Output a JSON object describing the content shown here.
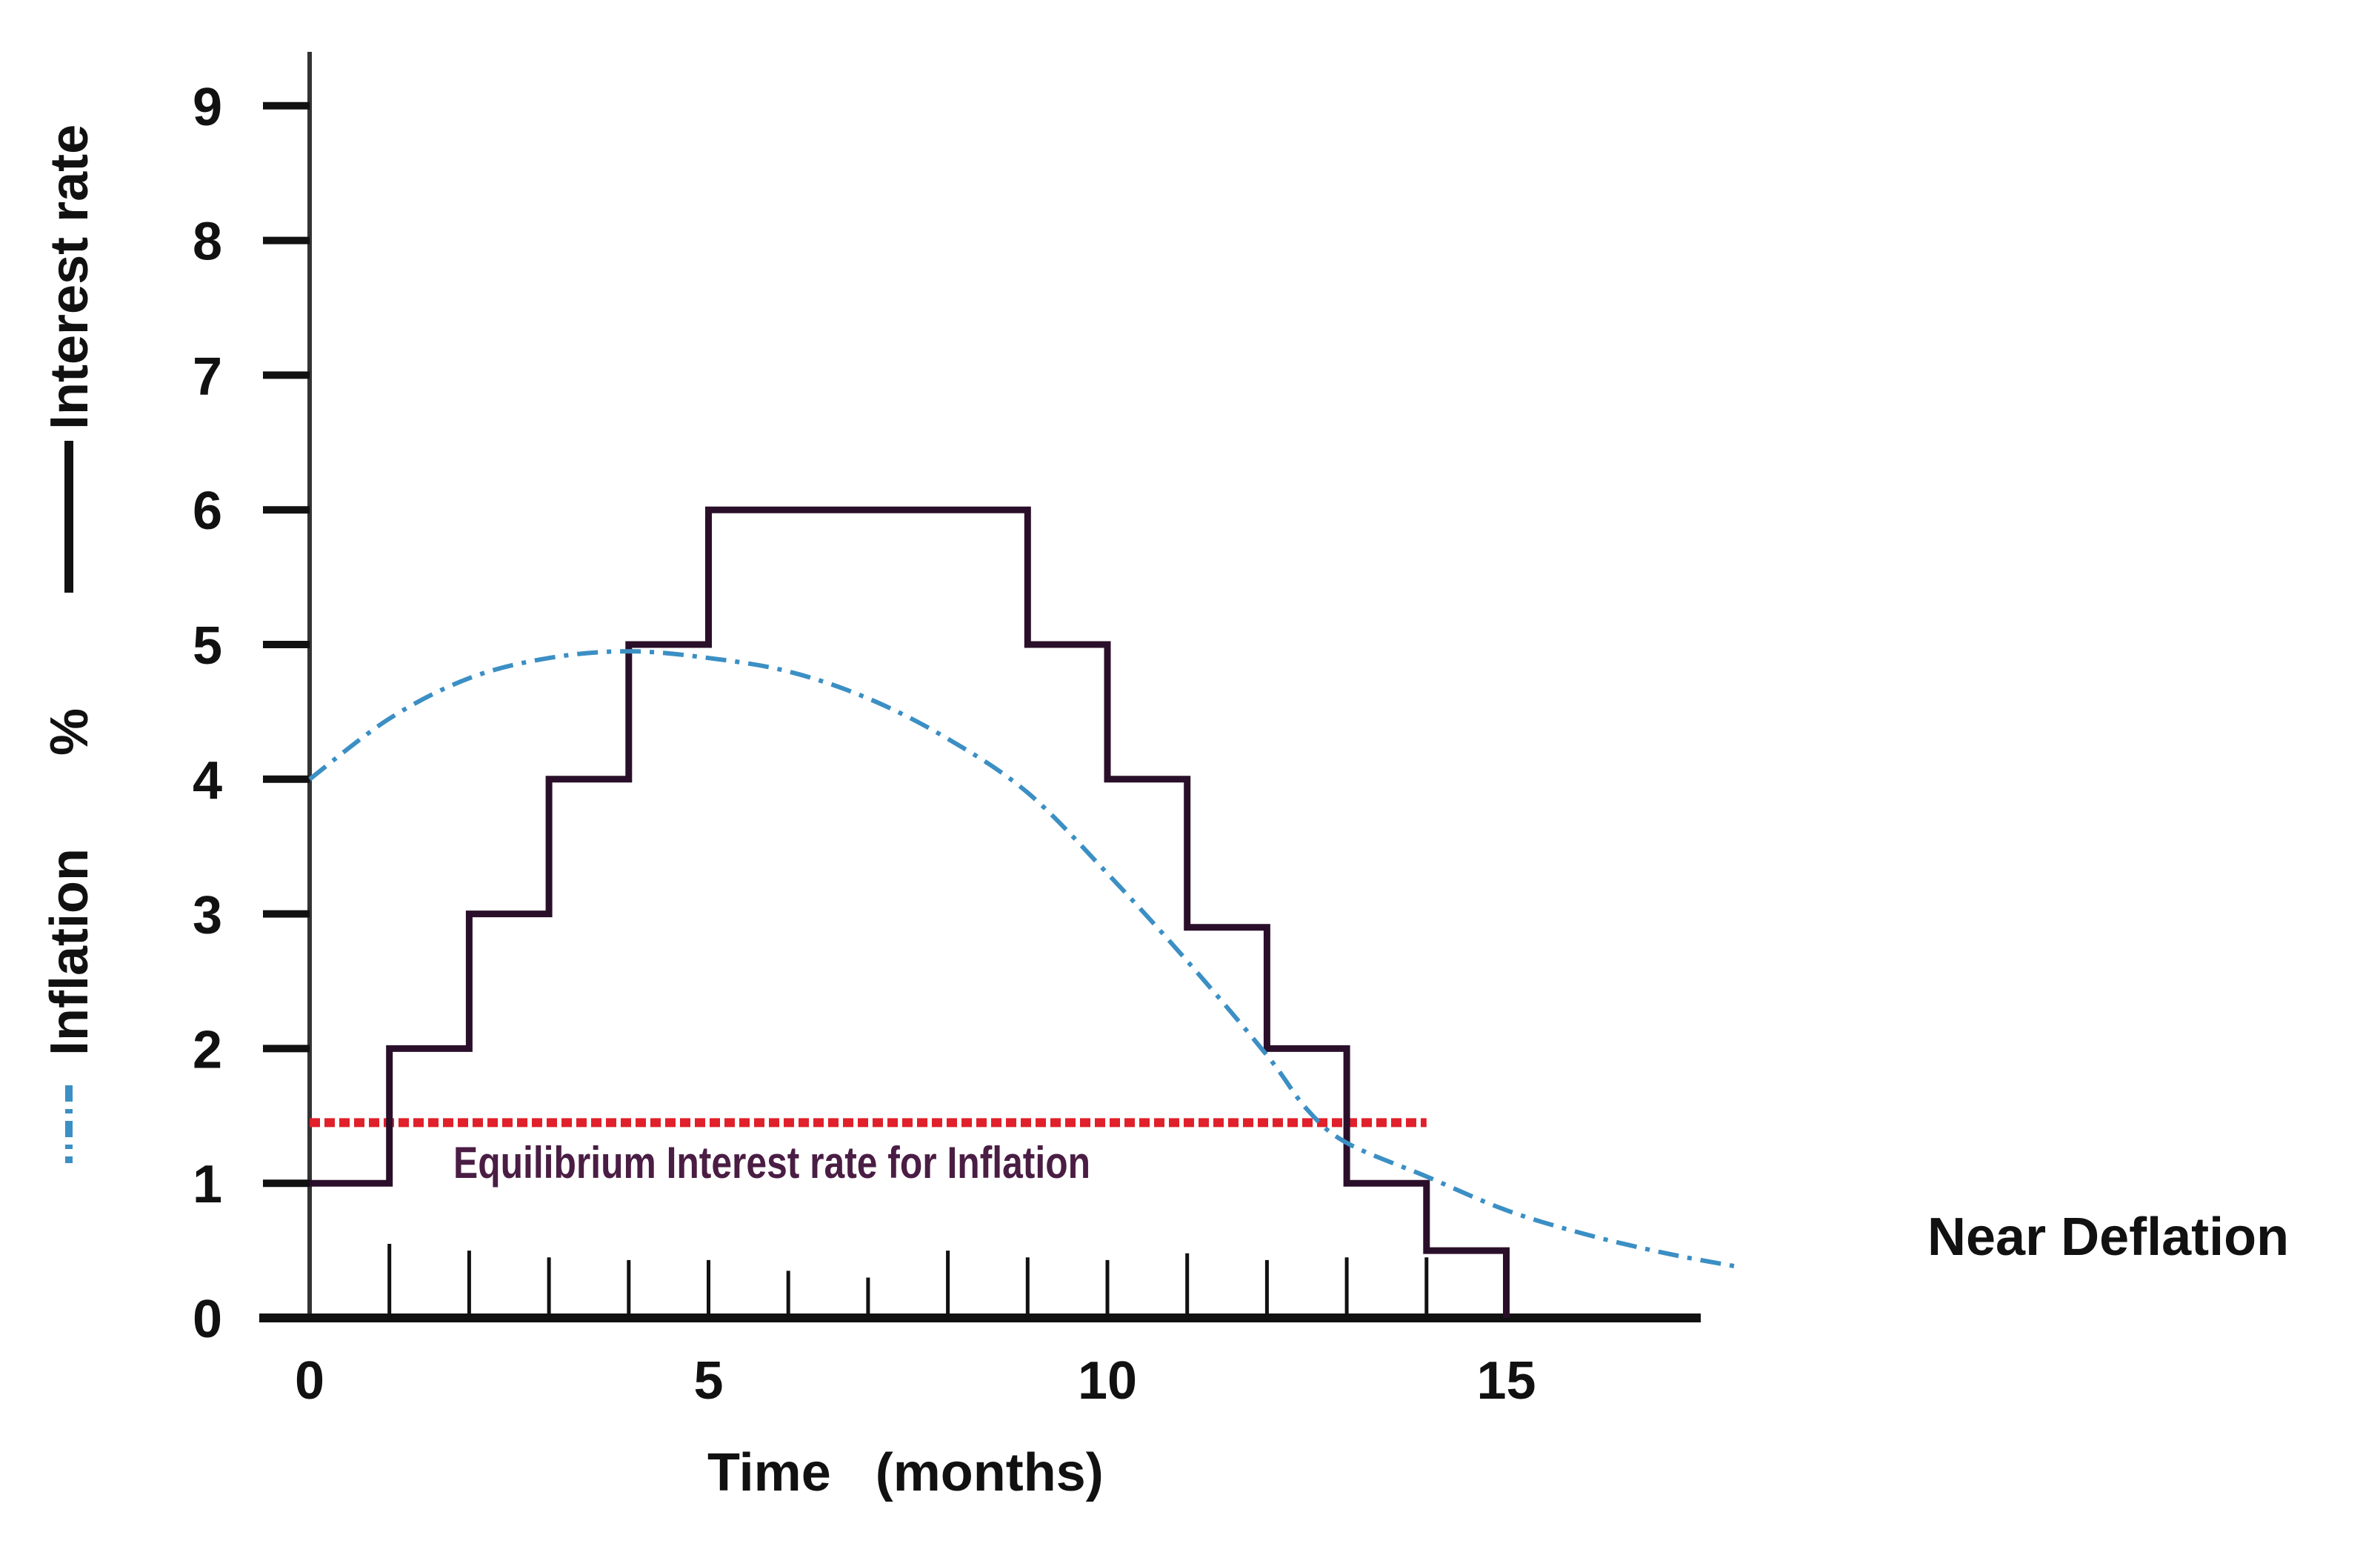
{
  "chart_data": {
    "type": "line",
    "title": "",
    "xlabel": "Time   (months)",
    "ylabel_parts": [
      "Interest rate",
      "%",
      "Inflation"
    ],
    "xlim": [
      0,
      17.5
    ],
    "ylim": [
      0,
      9
    ],
    "x_ticks": [
      0,
      5,
      10,
      15
    ],
    "x_tick_labels": [
      "0",
      "5",
      "10",
      "15"
    ],
    "y_ticks": [
      0,
      1,
      2,
      3,
      4,
      5,
      6,
      7,
      8,
      9
    ],
    "y_tick_labels": [
      "0",
      "1",
      "2",
      "3",
      "4",
      "5",
      "6",
      "7",
      "8",
      "9"
    ],
    "grid": false,
    "legend": {
      "position": "left (vertical, along y-axis title)",
      "entries": [
        {
          "label": "Interest rate",
          "style": "solid",
          "color": "#1a0a1a"
        },
        {
          "label": "Inflation",
          "style": "dash-dot",
          "color": "#3b8fc4"
        }
      ]
    },
    "series": [
      {
        "name": "Interest rate",
        "style": "step",
        "color": "#2a0f2a",
        "steps": [
          {
            "x0": 0,
            "x1": 1,
            "y": 1
          },
          {
            "x0": 1,
            "x1": 2,
            "y": 2
          },
          {
            "x0": 2,
            "x1": 3,
            "y": 3
          },
          {
            "x0": 3,
            "x1": 4,
            "y": 4
          },
          {
            "x0": 4,
            "x1": 5,
            "y": 5
          },
          {
            "x0": 5,
            "x1": 9,
            "y": 6
          },
          {
            "x0": 9,
            "x1": 10,
            "y": 5
          },
          {
            "x0": 10,
            "x1": 11,
            "y": 4
          },
          {
            "x0": 11,
            "x1": 12,
            "y": 2.9
          },
          {
            "x0": 12,
            "x1": 13,
            "y": 2
          },
          {
            "x0": 13,
            "x1": 14,
            "y": 1
          },
          {
            "x0": 14,
            "x1": 15,
            "y": 0.5
          }
        ]
      },
      {
        "name": "Inflation",
        "style": "dash-dot",
        "color": "#3b8fc4",
        "x": [
          0,
          1,
          2,
          3,
          4,
          5,
          6,
          7,
          8,
          9,
          10,
          11,
          12,
          12.5,
          13,
          14,
          15,
          16,
          17,
          17.9
        ],
        "y": [
          4.0,
          4.45,
          4.75,
          4.9,
          4.95,
          4.9,
          4.8,
          4.6,
          4.3,
          3.9,
          3.3,
          2.65,
          1.95,
          1.55,
          1.3,
          1.05,
          0.8,
          0.62,
          0.48,
          0.38
        ]
      },
      {
        "name": "Equilibrium Interest rate for Inflation",
        "style": "dotted-horizontal",
        "color": "#e0202a",
        "x": [
          0,
          14
        ],
        "y": [
          1.45,
          1.45
        ]
      }
    ],
    "annotations": [
      {
        "text": "Equilibrium Interest rate for Inflation",
        "x": 1.8,
        "y": 1.15
      },
      {
        "text": "Near Deflation",
        "x": 20.5,
        "y": 0.6
      }
    ],
    "minor_x_ticks": [
      1,
      2,
      3,
      4,
      5,
      6,
      7,
      8,
      9,
      10,
      11,
      12,
      13,
      14,
      15
    ]
  },
  "labels": {
    "y_title_interest": "Interest rate",
    "y_title_percent": "%",
    "y_title_inflation": "Inflation",
    "x_title": "Time   (months)",
    "equilibrium": "Equilibrium Interest rate for Inflation",
    "near_deflation": "Near Deflation"
  }
}
